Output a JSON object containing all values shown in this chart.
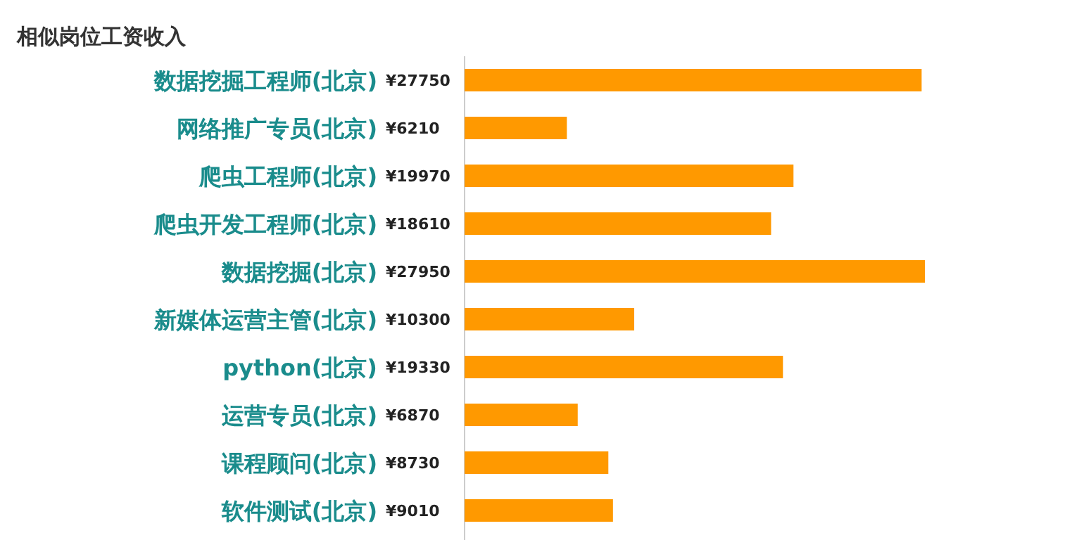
{
  "chart_data": {
    "type": "bar",
    "orientation": "horizontal",
    "title": "相似岗位工资收入",
    "categories": [
      "数据挖掘工程师(北京)",
      "网络推广专员(北京)",
      "爬虫工程师(北京)",
      "爬虫开发工程师(北京)",
      "数据挖掘(北京)",
      "新媒体运营主管(北京)",
      "python(北京)",
      "运营专员(北京)",
      "课程顾问(北京)",
      "软件测试(北京)"
    ],
    "values": [
      27750,
      6210,
      19970,
      18610,
      27950,
      10300,
      19330,
      6870,
      8730,
      9010
    ],
    "value_labels": [
      "¥27750",
      "¥6210",
      "¥19970",
      "¥18610",
      "¥27950",
      "¥10300",
      "¥19330",
      "¥6870",
      "¥8730",
      "¥9010"
    ],
    "color": "#ff9900"
  }
}
